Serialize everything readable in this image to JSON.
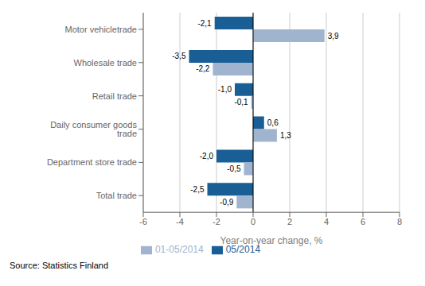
{
  "chart_data": {
    "type": "bar",
    "orientation": "horizontal",
    "categories": [
      "Motor vehicletrade",
      "Wholesale trade",
      "Retail trade",
      "Daily consumer goods trade",
      "Department store trade",
      "Total trade"
    ],
    "series": [
      {
        "name": "05/2014",
        "color": "#1a5e96",
        "values": [
          -2.1,
          -3.5,
          -1.0,
          0.6,
          -2.0,
          -2.5
        ],
        "value_labels": [
          "-2,1",
          "-3,5",
          "-1,0",
          "0,6",
          "-2,0",
          "-2,5"
        ]
      },
      {
        "name": "01-05/2014",
        "color": "#a0b4d0",
        "values": [
          3.9,
          -2.2,
          -0.1,
          1.3,
          -0.5,
          -0.9
        ],
        "value_labels": [
          "3,9",
          "-2,2",
          "-0,1",
          "1,3",
          "-0,5",
          "-0,9"
        ]
      }
    ],
    "xlabel": "Year-on-year change, %",
    "xlim": [
      -6,
      8
    ],
    "xticks": [
      -6,
      -4,
      -2,
      0,
      2,
      4,
      6,
      8
    ],
    "grid": true,
    "legend": "bottom",
    "data_labels": true,
    "annotations": [
      "Source: Statistics Finland"
    ]
  }
}
